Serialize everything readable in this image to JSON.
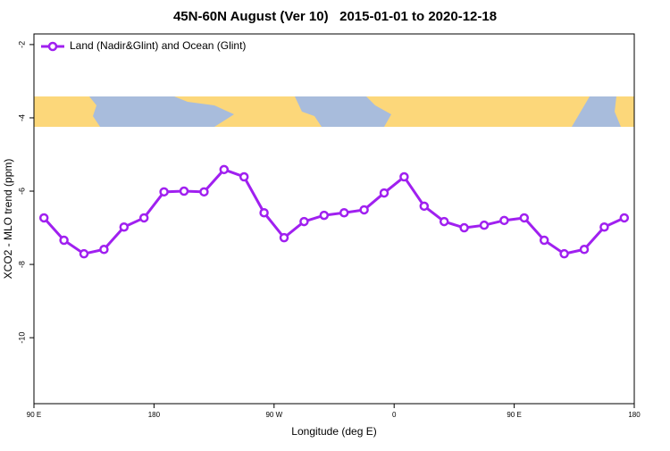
{
  "chart_data": {
    "type": "line",
    "title": "45N-60N August (Ver 10)   2015-01-01 to 2020-12-18",
    "x_label": "Longitude (deg E)",
    "y_label": "XCO2 - MLO trend (ppm)",
    "x": [
      97.5,
      112.5,
      127.5,
      142.5,
      157.5,
      172.5,
      187.5,
      202.5,
      217.5,
      232.5,
      247.5,
      262.5,
      277.5,
      292.5,
      307.5,
      322.5,
      337.5,
      352.5,
      367.5,
      382.5,
      397.5,
      412.5,
      427.5,
      442.5,
      457.5,
      472.5,
      487.5,
      502.5,
      517.5,
      532.5
    ],
    "series": [
      {
        "name": "Land (Nadir&Glint) and Ocean (Glint)",
        "color": "#a020f0",
        "values": [
          -6.73,
          -7.34,
          -7.71,
          -7.59,
          -6.98,
          -6.73,
          -6.02,
          -6.0,
          -6.02,
          -5.41,
          -5.61,
          -6.59,
          -7.27,
          -6.83,
          -6.66,
          -6.59,
          -6.51,
          -6.05,
          -5.61,
          -6.41,
          -6.83,
          -7.0,
          -6.93,
          -6.8,
          -6.73,
          -7.34,
          -7.71,
          -7.59,
          -6.98,
          -6.73
        ]
      }
    ],
    "xlim": [
      90,
      540
    ],
    "xticks": [
      {
        "value": 90,
        "label": "90 E"
      },
      {
        "value": 180,
        "label": "180"
      },
      {
        "value": 270,
        "label": "90 W"
      },
      {
        "value": 360,
        "label": "0"
      },
      {
        "value": 450,
        "label": "90 E"
      },
      {
        "value": 540,
        "label": "180"
      }
    ],
    "ylim": [
      -11.8,
      -1.71
    ],
    "yticks": [
      -2,
      -4,
      -6,
      -8,
      -10
    ],
    "legend": "top-left"
  }
}
